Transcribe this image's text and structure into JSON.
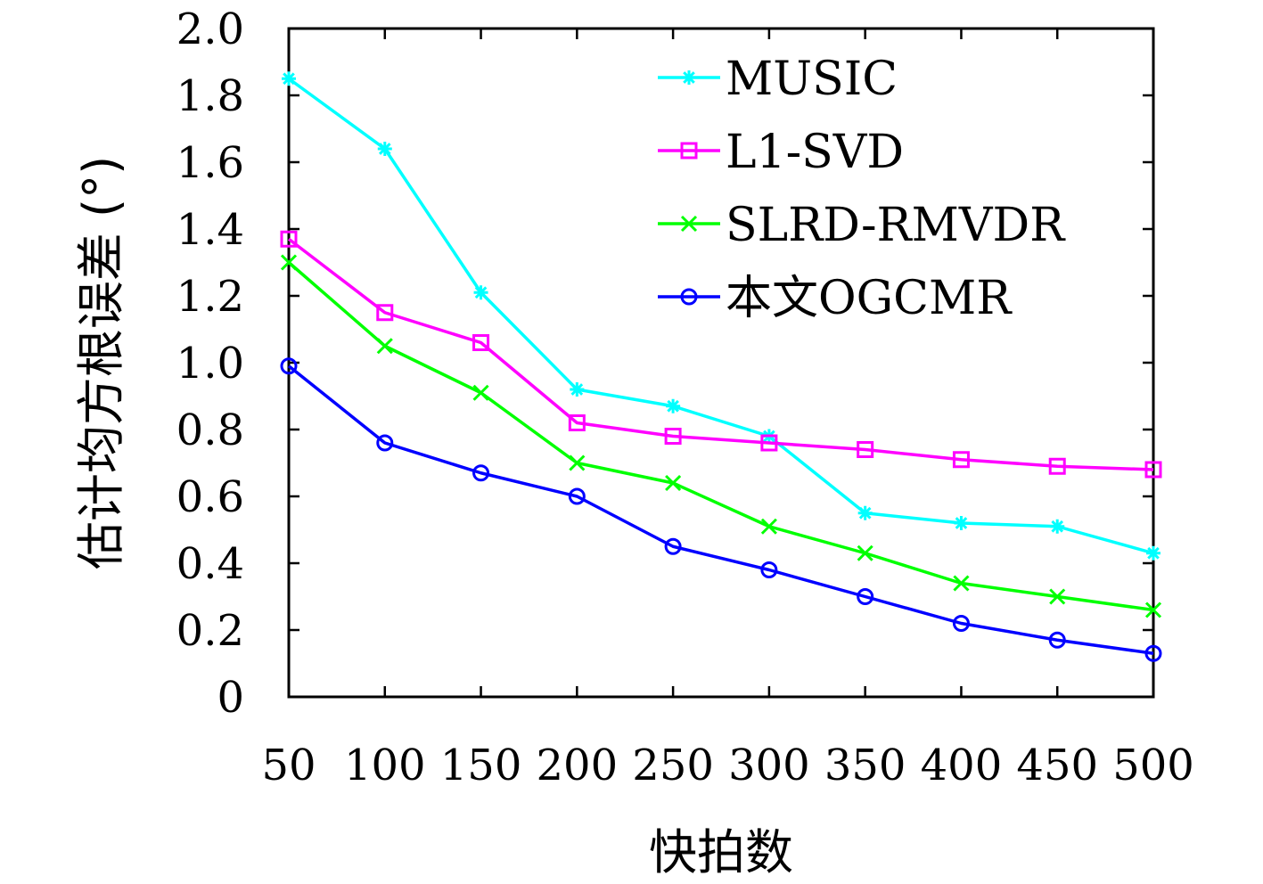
{
  "chart_data": {
    "type": "line",
    "title": "",
    "xlabel": "快拍数",
    "ylabel": "估计均方根误差 (°)",
    "x": [
      50,
      100,
      150,
      200,
      250,
      300,
      350,
      400,
      450,
      500
    ],
    "x_tick_labels": [
      "50",
      "100",
      "150",
      "200",
      "250",
      "300",
      "350",
      "400",
      "450",
      "500"
    ],
    "y_ticks": [
      0,
      0.2,
      0.4,
      0.6,
      0.8,
      1.0,
      1.2,
      1.4,
      1.6,
      1.8,
      2.0
    ],
    "y_tick_labels": [
      "0",
      "0.2",
      "0.4",
      "0.6",
      "0.8",
      "1.0",
      "1.2",
      "1.4",
      "1.6",
      "1.8",
      "2.0"
    ],
    "ylim": [
      0,
      2.0
    ],
    "grid": false,
    "legend_position": "top-right",
    "series": [
      {
        "name": "MUSIC",
        "color": "#00ffff",
        "marker": "asterisk",
        "values": [
          1.85,
          1.64,
          1.21,
          0.92,
          0.87,
          0.78,
          0.55,
          0.52,
          0.51,
          0.43
        ]
      },
      {
        "name": "L1-SVD",
        "color": "#ff00ff",
        "marker": "square",
        "values": [
          1.37,
          1.15,
          1.06,
          0.82,
          0.78,
          0.76,
          0.74,
          0.71,
          0.69,
          0.68
        ]
      },
      {
        "name": "SLRD-RMVDR",
        "color": "#00ff00",
        "marker": "x",
        "values": [
          1.3,
          1.05,
          0.91,
          0.7,
          0.64,
          0.51,
          0.43,
          0.34,
          0.3,
          0.26
        ]
      },
      {
        "name": "本文OGCMR",
        "color": "#0000ff",
        "marker": "circle",
        "values": [
          0.99,
          0.76,
          0.67,
          0.6,
          0.45,
          0.38,
          0.3,
          0.22,
          0.17,
          0.13
        ]
      }
    ]
  }
}
